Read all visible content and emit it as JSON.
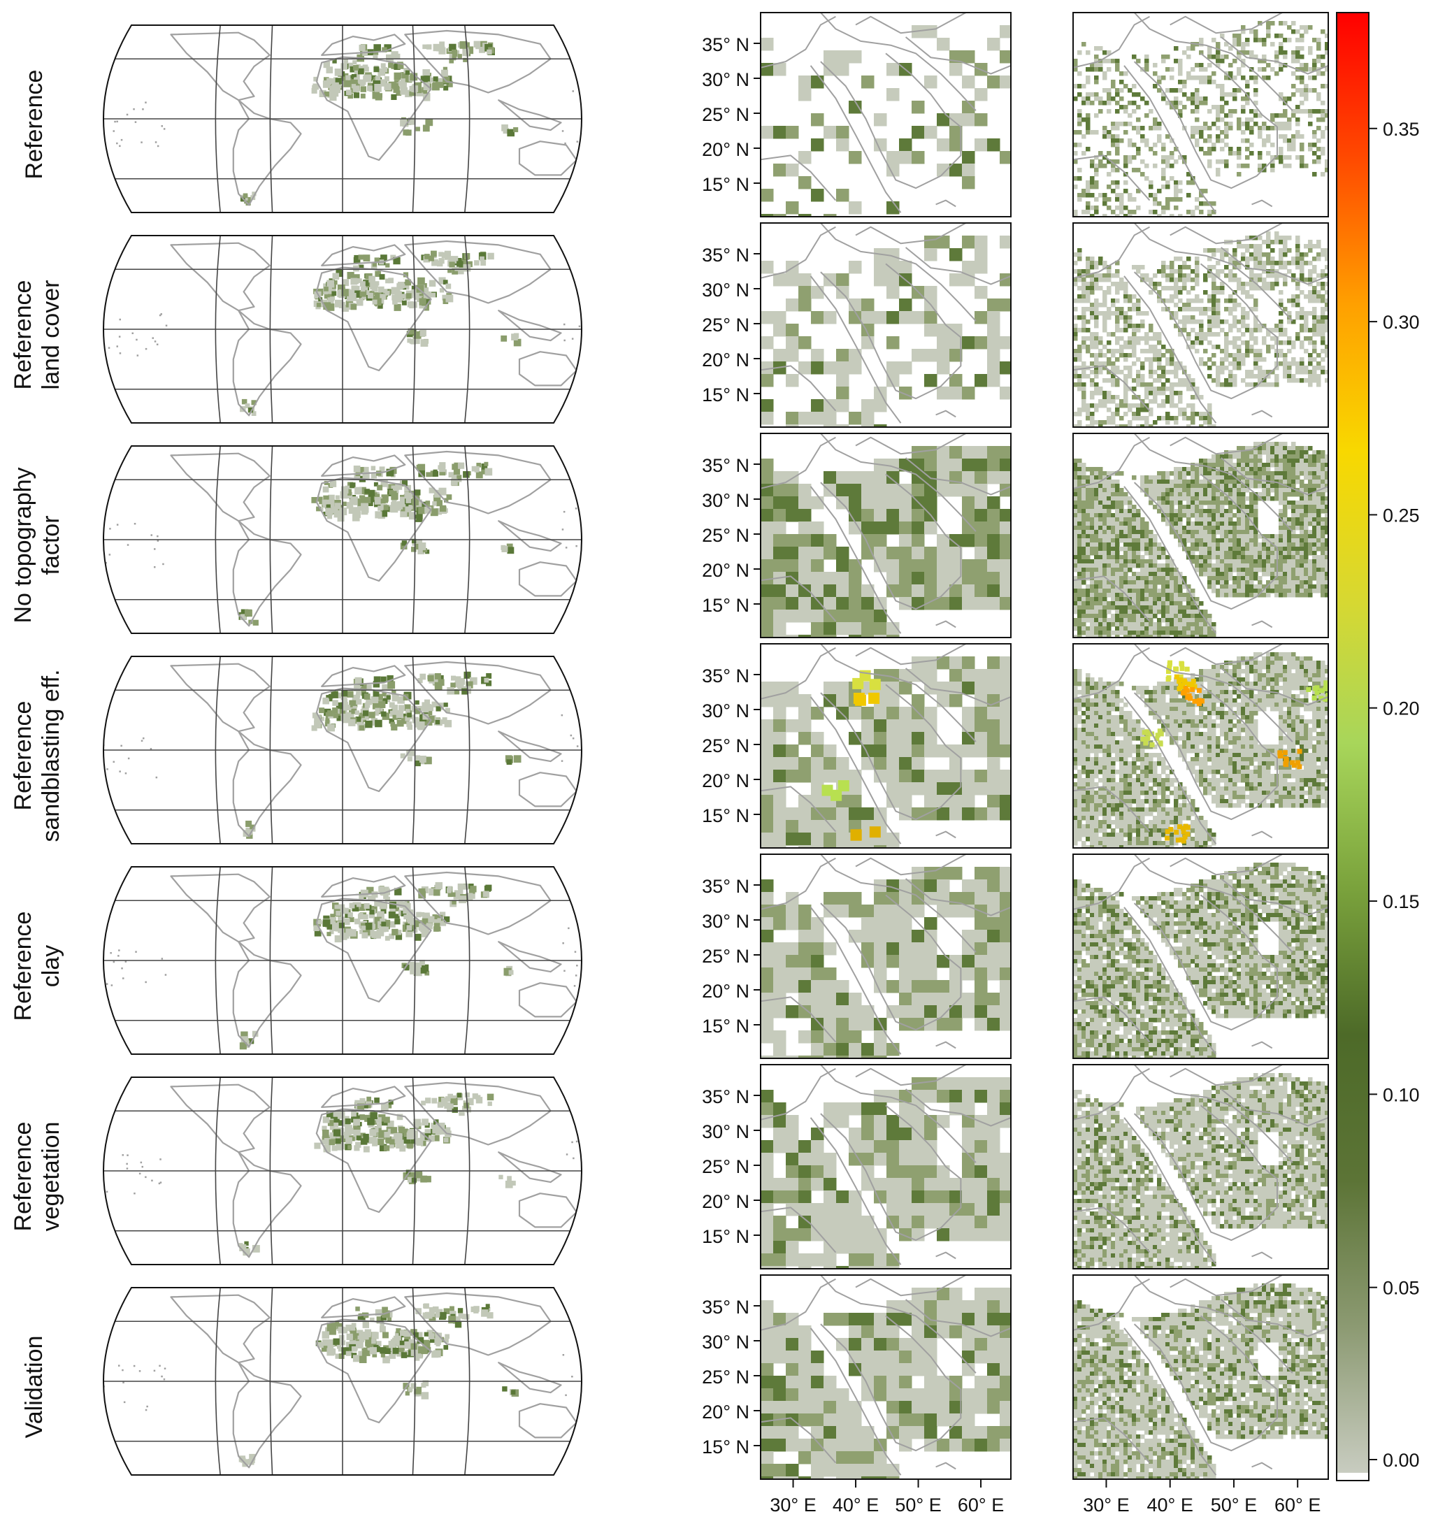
{
  "rows": [
    {
      "label_lines": [
        "Reference"
      ]
    },
    {
      "label_lines": [
        "Reference",
        "land cover"
      ]
    },
    {
      "label_lines": [
        "No topography",
        "factor"
      ]
    },
    {
      "label_lines": [
        "Reference",
        "sandblasting eff."
      ]
    },
    {
      "label_lines": [
        "Reference",
        "clay"
      ]
    },
    {
      "label_lines": [
        "Reference",
        "vegetation"
      ]
    },
    {
      "label_lines": [
        "Validation"
      ]
    }
  ],
  "lat_ticks": [
    "35° N",
    "30° N",
    "25° N",
    "20° N",
    "15° N"
  ],
  "lon_ticks": [
    "30° E",
    "40° E",
    "50° E",
    "60° E"
  ],
  "colorbar": {
    "ticks": [
      "0.00",
      "0.05",
      "0.10",
      "0.15",
      "0.20",
      "0.25",
      "0.30",
      "0.35"
    ],
    "tick_values": [
      0.0,
      0.05,
      0.1,
      0.15,
      0.2,
      0.25,
      0.3,
      0.35
    ],
    "range": [
      0.0,
      0.38
    ],
    "stops": [
      "#c8ccc0",
      "#8c9a72",
      "#5c7436",
      "#4d6a28",
      "#7aa23c",
      "#a8d65a",
      "#d8d830",
      "#f8d800",
      "#ffa000",
      "#ff4a00",
      "#ff0000"
    ]
  },
  "colors": {
    "light_grey_source": "#c2c8b8",
    "mid_green_source": "#8a9d6c",
    "dark_green_source": "#5a7838",
    "coast_line": "#a0a0a0",
    "graticule": "#444444"
  }
}
